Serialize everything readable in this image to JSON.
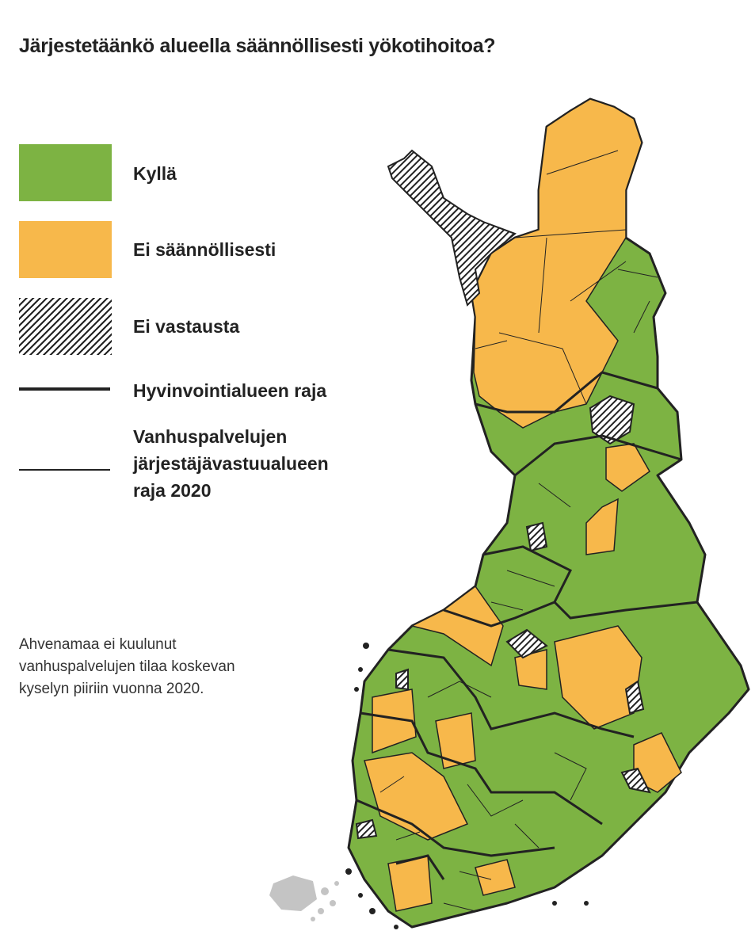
{
  "title": "Järjestetäänkö alueella säännöllisesti yökotihoitoa?",
  "legend": {
    "items": [
      {
        "label": "Kyllä",
        "color": "#7db343",
        "type": "fill"
      },
      {
        "label": "Ei säännöllisesti",
        "color": "#f7b84b",
        "type": "fill"
      },
      {
        "label": "Ei vastausta",
        "color": "#ffffff",
        "type": "hatch"
      },
      {
        "label": "Hyvinvointialueen raja",
        "type": "thick-line"
      },
      {
        "label": "Vanhuspalvelujen järjestäjävastuualueen raja 2020",
        "label_lines": [
          "Vanhuspalvelujen",
          "järjestäjävastuualueen",
          "raja 2020"
        ],
        "type": "thin-line"
      }
    ]
  },
  "note": "Ahvenamaa ei kuulunut vanhuspalvelujen tilaa koskevan kyselyn piiriin vuonna 2020.",
  "colors": {
    "yes": "#7db343",
    "not_regular": "#f7b84b",
    "no_answer_hatch": "#222222",
    "aland": "#c4c4c4",
    "border": "#222222"
  }
}
